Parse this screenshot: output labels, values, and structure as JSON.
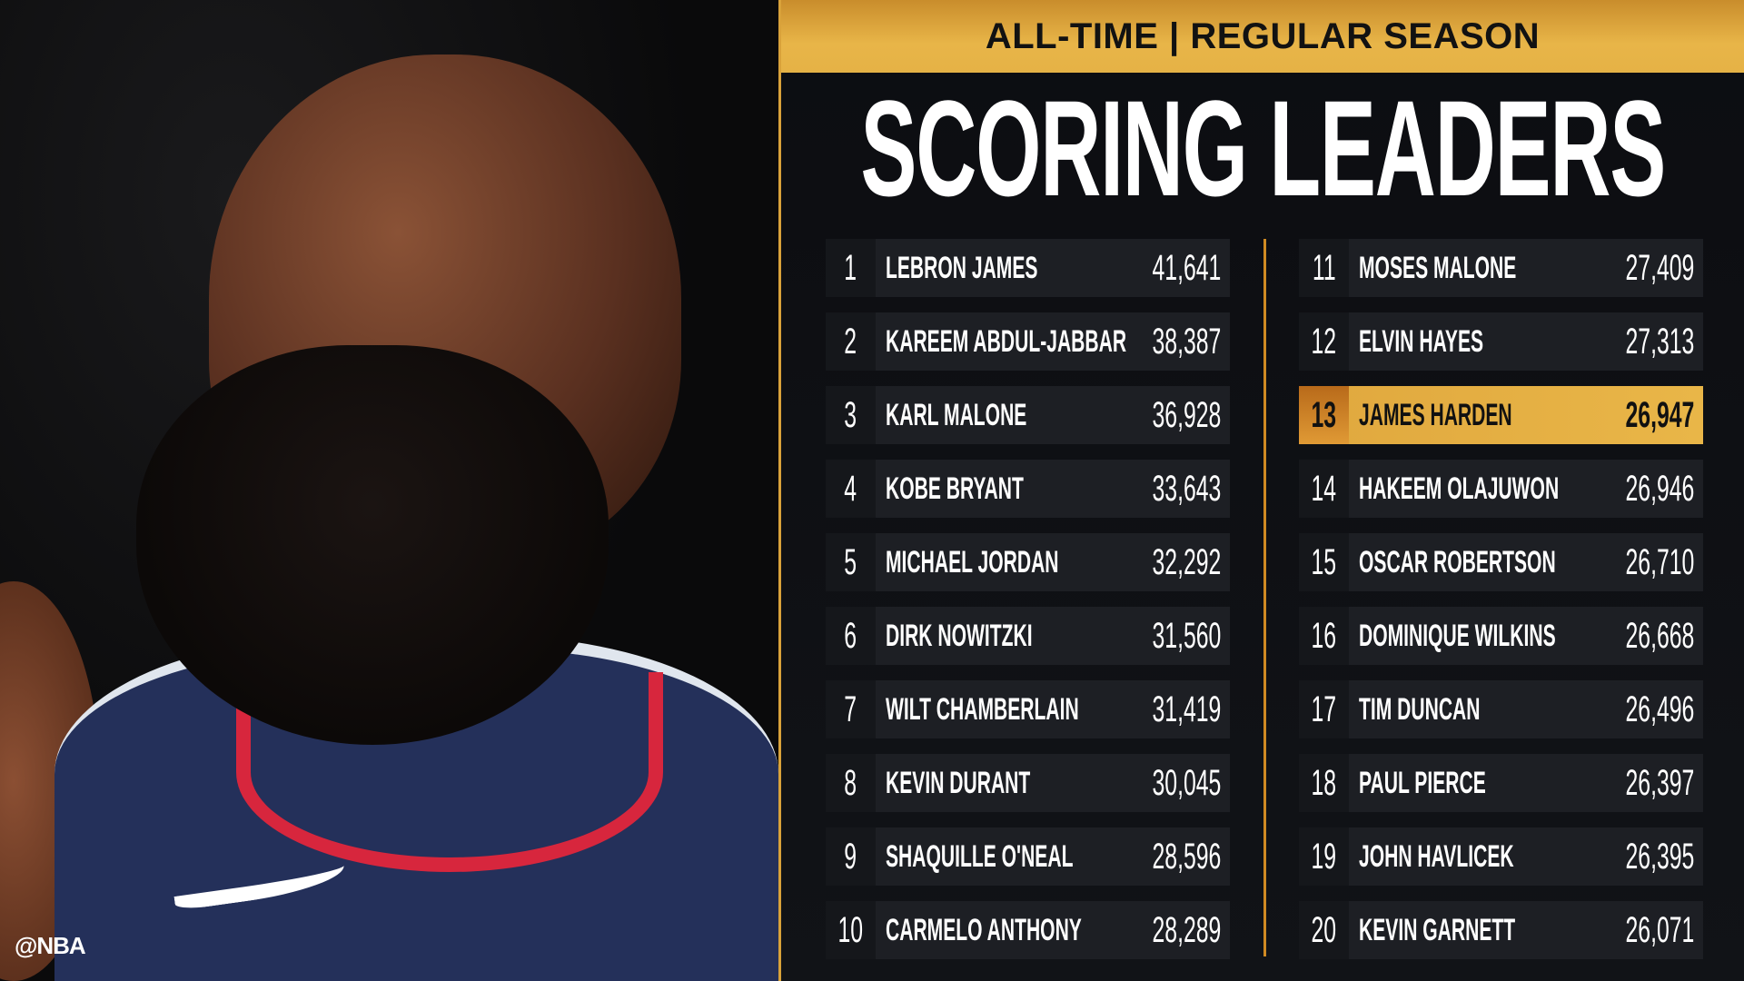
{
  "header": {
    "subtitle": "ALL-TIME | REGULAR SEASON",
    "title": "SCORING LEADERS"
  },
  "watermark": "@NBA",
  "colors": {
    "accent": "#e5b246",
    "panel": "#0c0d11",
    "row": "#1d1f24"
  },
  "leaders": [
    {
      "rank": "1",
      "name": "LEBRON JAMES",
      "points": "41,641"
    },
    {
      "rank": "2",
      "name": "KAREEM ABDUL-JABBAR",
      "points": "38,387"
    },
    {
      "rank": "3",
      "name": "KARL MALONE",
      "points": "36,928"
    },
    {
      "rank": "4",
      "name": "KOBE BRYANT",
      "points": "33,643"
    },
    {
      "rank": "5",
      "name": "MICHAEL JORDAN",
      "points": "32,292"
    },
    {
      "rank": "6",
      "name": "DIRK NOWITZKI",
      "points": "31,560"
    },
    {
      "rank": "7",
      "name": "WILT CHAMBERLAIN",
      "points": "31,419"
    },
    {
      "rank": "8",
      "name": "KEVIN DURANT",
      "points": "30,045"
    },
    {
      "rank": "9",
      "name": "SHAQUILLE O'NEAL",
      "points": "28,596"
    },
    {
      "rank": "10",
      "name": "CARMELO ANTHONY",
      "points": "28,289"
    },
    {
      "rank": "11",
      "name": "MOSES MALONE",
      "points": "27,409"
    },
    {
      "rank": "12",
      "name": "ELVIN HAYES",
      "points": "27,313"
    },
    {
      "rank": "13",
      "name": "JAMES HARDEN",
      "points": "26,947",
      "highlighted": true
    },
    {
      "rank": "14",
      "name": "HAKEEM OLAJUWON",
      "points": "26,946"
    },
    {
      "rank": "15",
      "name": "OSCAR ROBERTSON",
      "points": "26,710"
    },
    {
      "rank": "16",
      "name": "DOMINIQUE WILKINS",
      "points": "26,668"
    },
    {
      "rank": "17",
      "name": "TIM DUNCAN",
      "points": "26,496"
    },
    {
      "rank": "18",
      "name": "PAUL PIERCE",
      "points": "26,397"
    },
    {
      "rank": "19",
      "name": "JOHN HAVLICEK",
      "points": "26,395"
    },
    {
      "rank": "20",
      "name": "KEVIN GARNETT",
      "points": "26,071"
    }
  ]
}
